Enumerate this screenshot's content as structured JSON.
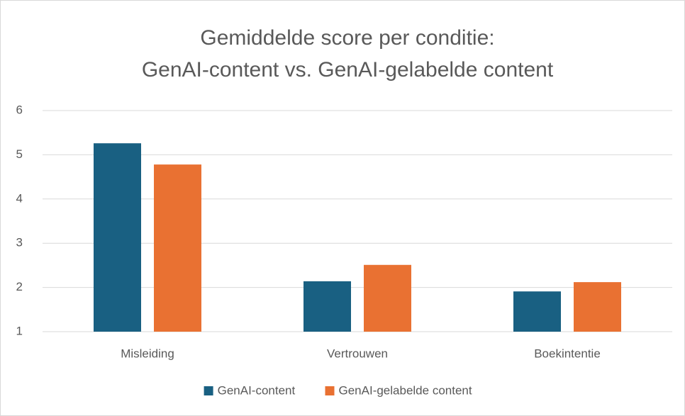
{
  "chart_data": {
    "type": "bar",
    "title": [
      "Gemiddelde score per conditie:",
      "GenAI-content vs. GenAI-gelabelde content"
    ],
    "categories": [
      "Misleiding",
      "Vertrouwen",
      "Boekintentie"
    ],
    "series": [
      {
        "name": "GenAI-content",
        "color": "#196082",
        "values": [
          5.26,
          2.14,
          1.91
        ]
      },
      {
        "name": "GenAI-gelabelde content",
        "color": "#e97132",
        "values": [
          4.78,
          2.51,
          2.12
        ]
      }
    ],
    "ylim": [
      1,
      6
    ],
    "yticks": [
      1,
      2,
      3,
      4,
      5,
      6
    ],
    "grid": true,
    "legend": "bottom"
  }
}
